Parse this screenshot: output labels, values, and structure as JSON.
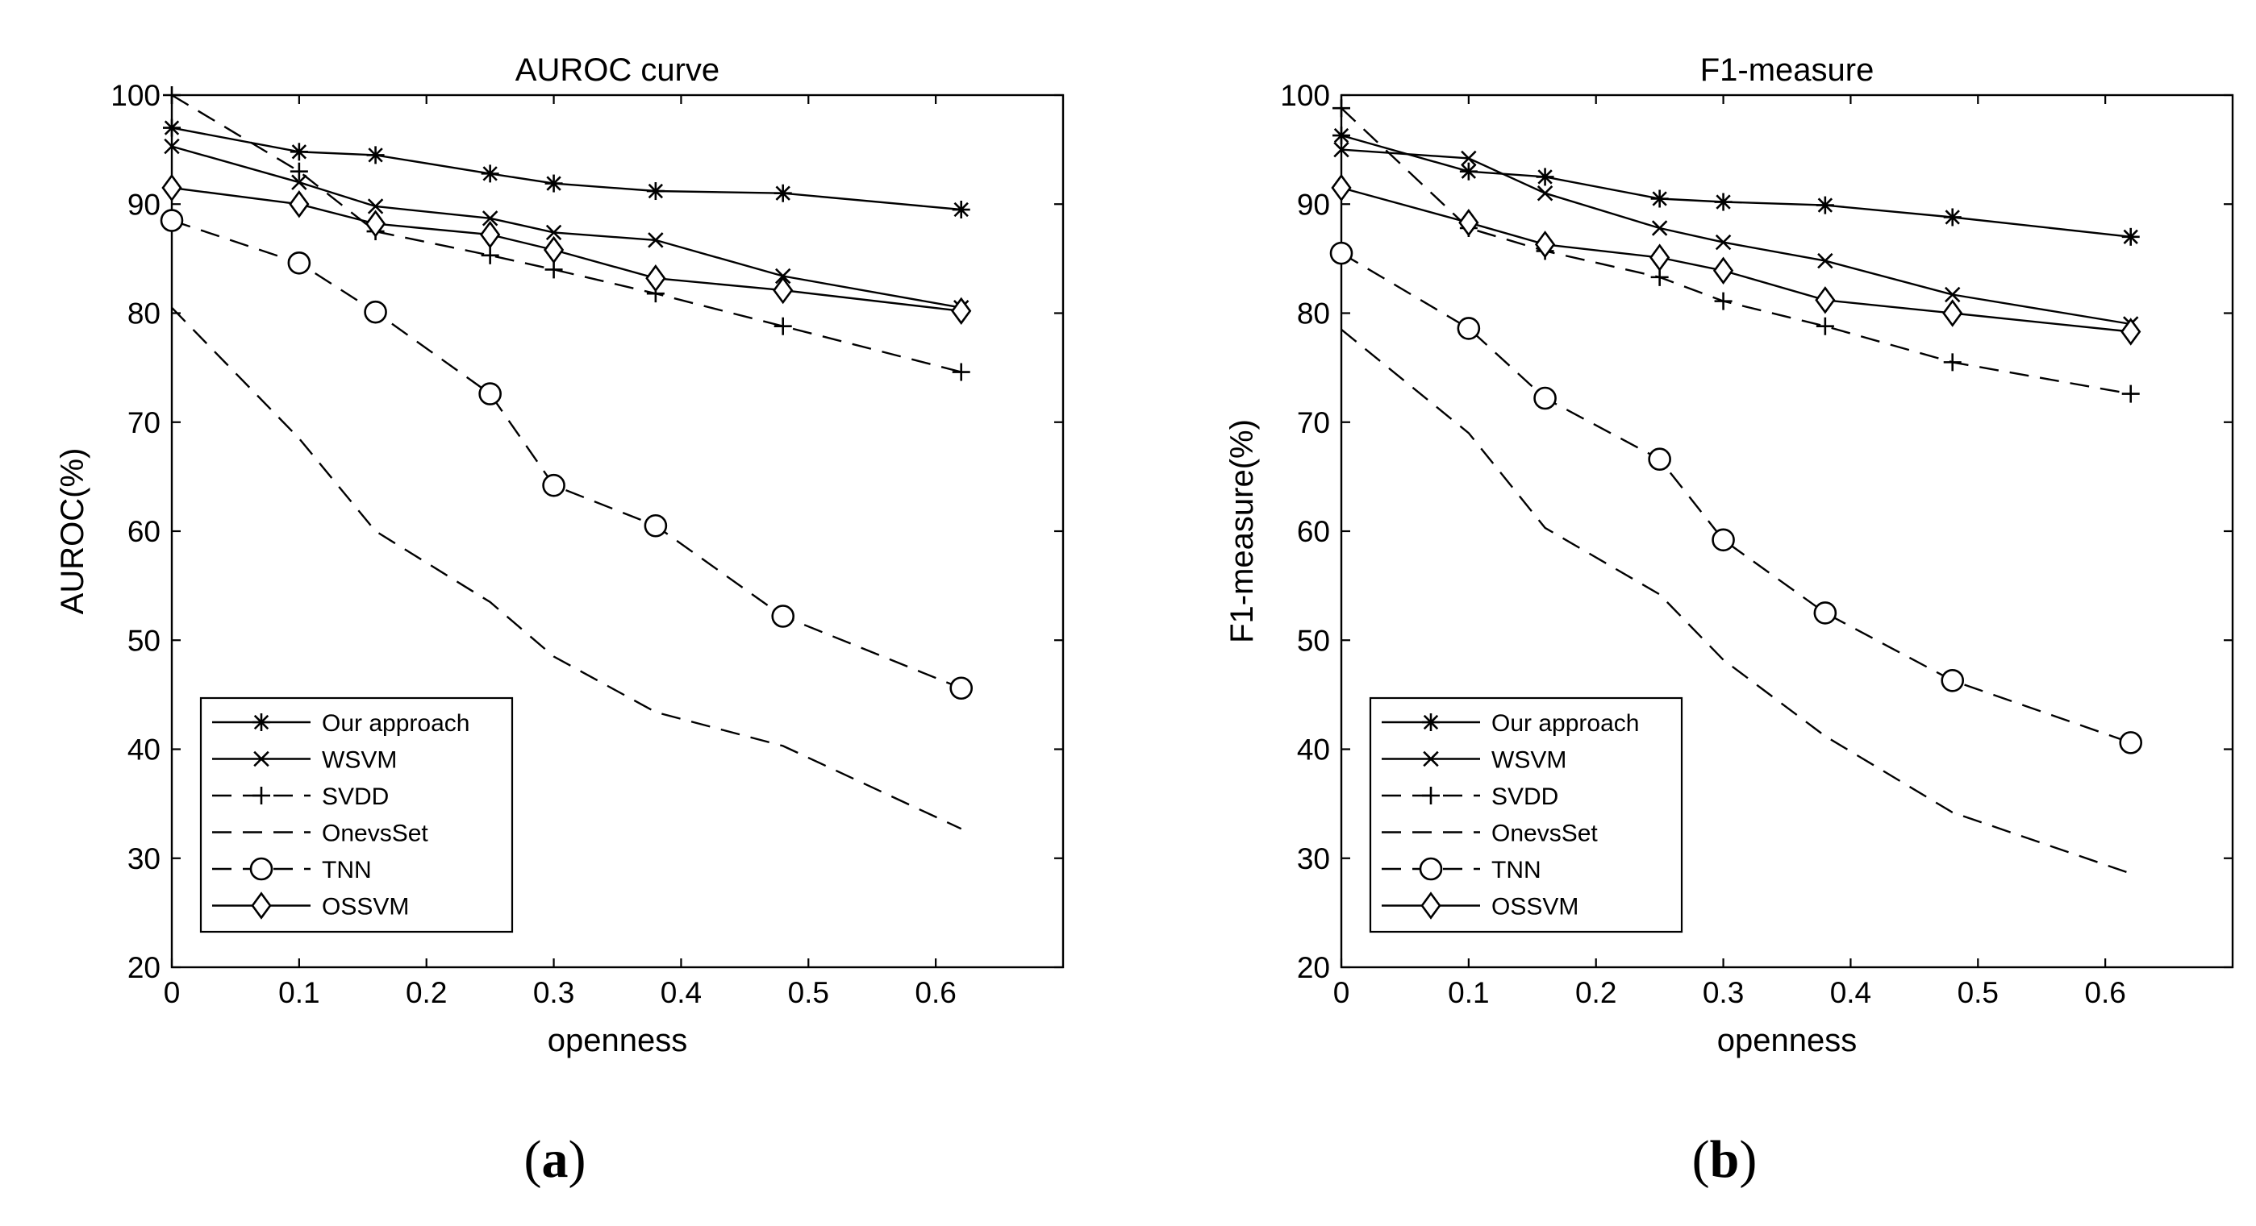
{
  "chart_data": [
    {
      "type": "line",
      "title": "AUROC curve",
      "xlabel": "openness",
      "ylabel": "AUROC(%)",
      "xlim": [
        0,
        0.7
      ],
      "ylim": [
        20,
        100
      ],
      "xticks": [
        "0",
        "0.1",
        "0.2",
        "0.3",
        "0.4",
        "0.5",
        "0.6"
      ],
      "yticks": [
        "20",
        "30",
        "40",
        "50",
        "60",
        "70",
        "80",
        "90",
        "100"
      ],
      "legend_position": "bottom-left",
      "caption": {
        "open": "(",
        "letter": "a",
        "close": ")"
      },
      "series": [
        {
          "name": "Our approach",
          "x": [
            0,
            0.1,
            0.16,
            0.25,
            0.3,
            0.38,
            0.48,
            0.62
          ],
          "y": [
            97,
            94.8,
            94.5,
            92.8,
            91.9,
            91.2,
            91.0,
            89.5
          ]
        },
        {
          "name": "WSVM",
          "x": [
            0,
            0.1,
            0.16,
            0.25,
            0.3,
            0.38,
            0.48,
            0.62
          ],
          "y": [
            95.3,
            92.0,
            89.8,
            88.7,
            87.4,
            86.7,
            83.4,
            80.5
          ]
        },
        {
          "name": "SVDD",
          "x": [
            0,
            0.1,
            0.16,
            0.25,
            0.3,
            0.38,
            0.48,
            0.62
          ],
          "y": [
            100,
            93.0,
            87.5,
            85.3,
            84.0,
            81.8,
            78.8,
            74.6
          ]
        },
        {
          "name": "OnevsSet",
          "x": [
            0,
            0.1,
            0.16,
            0.25,
            0.3,
            0.38,
            0.48,
            0.62
          ],
          "y": [
            80.5,
            68.5,
            60.0,
            53.5,
            48.5,
            43.4,
            40.3,
            32.7
          ]
        },
        {
          "name": "TNN",
          "x": [
            0,
            0.1,
            0.16,
            0.25,
            0.3,
            0.38,
            0.48,
            0.62
          ],
          "y": [
            88.5,
            84.6,
            80.1,
            72.6,
            64.2,
            60.5,
            52.2,
            45.6
          ]
        },
        {
          "name": "OSSVM",
          "x": [
            0,
            0.1,
            0.16,
            0.25,
            0.3,
            0.38,
            0.48,
            0.62
          ],
          "y": [
            91.5,
            90.0,
            88.2,
            87.2,
            85.8,
            83.2,
            82.1,
            80.2
          ]
        }
      ]
    },
    {
      "type": "line",
      "title": "F1-measure",
      "xlabel": "openness",
      "ylabel": "F1-measure(%)",
      "xlim": [
        0,
        0.7
      ],
      "ylim": [
        20,
        100
      ],
      "xticks": [
        "0",
        "0.1",
        "0.2",
        "0.3",
        "0.4",
        "0.5",
        "0.6"
      ],
      "yticks": [
        "20",
        "30",
        "40",
        "50",
        "60",
        "70",
        "80",
        "90",
        "100"
      ],
      "legend_position": "bottom-left",
      "caption": {
        "open": "(",
        "letter": "b",
        "close": ")"
      },
      "series": [
        {
          "name": "Our approach",
          "x": [
            0,
            0.1,
            0.16,
            0.25,
            0.3,
            0.38,
            0.48,
            0.62
          ],
          "y": [
            96.3,
            93.0,
            92.5,
            90.5,
            90.2,
            89.9,
            88.8,
            87.0
          ]
        },
        {
          "name": "WSVM",
          "x": [
            0,
            0.1,
            0.16,
            0.25,
            0.3,
            0.38,
            0.48,
            0.62
          ],
          "y": [
            95.0,
            94.2,
            91.0,
            87.8,
            86.5,
            84.8,
            81.7,
            79.0
          ]
        },
        {
          "name": "SVDD",
          "x": [
            0,
            0.1,
            0.16,
            0.25,
            0.3,
            0.38,
            0.48,
            0.62
          ],
          "y": [
            98.8,
            87.8,
            85.7,
            83.3,
            81.1,
            78.8,
            75.5,
            72.6
          ]
        },
        {
          "name": "OnevsSet",
          "x": [
            0,
            0.1,
            0.16,
            0.25,
            0.3,
            0.38,
            0.48,
            0.62
          ],
          "y": [
            78.5,
            69.0,
            60.3,
            54.2,
            48.2,
            41.2,
            34.2,
            28.6
          ]
        },
        {
          "name": "TNN",
          "x": [
            0,
            0.1,
            0.16,
            0.25,
            0.3,
            0.38,
            0.48,
            0.62
          ],
          "y": [
            85.5,
            78.6,
            72.2,
            66.6,
            59.2,
            52.5,
            46.3,
            40.6
          ]
        },
        {
          "name": "OSSVM",
          "x": [
            0,
            0.1,
            0.16,
            0.25,
            0.3,
            0.38,
            0.48,
            0.62
          ],
          "y": [
            91.5,
            88.3,
            86.3,
            85.1,
            83.9,
            81.2,
            80.0,
            78.3
          ]
        }
      ]
    }
  ]
}
